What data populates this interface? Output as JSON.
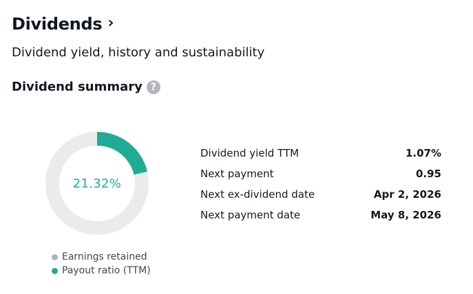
{
  "header": {
    "title": "Dividends",
    "chevron": "›",
    "subtitle": "Dividend yield, history and sustainability"
  },
  "summary": {
    "title": "Dividend summary",
    "help_icon": "question-mark-icon",
    "help_glyph": "?"
  },
  "chart_data": {
    "type": "pie",
    "variant": "donut",
    "center_label": "21.32%",
    "slices": [
      {
        "name": "Payout ratio (TTM)",
        "value": 21.32,
        "color": "#22ab94"
      },
      {
        "name": "Earnings retained",
        "value": 78.68,
        "color": "#ebebeb"
      }
    ],
    "legend": [
      {
        "label": "Earnings retained",
        "color": "#b2b5be"
      },
      {
        "label": "Payout ratio (TTM)",
        "color": "#22ab94"
      }
    ]
  },
  "stats": [
    {
      "label": "Dividend yield TTM",
      "value": "1.07%"
    },
    {
      "label": "Next payment",
      "value": "0.95"
    },
    {
      "label": "Next ex-dividend date",
      "value": "Apr 2, 2026"
    },
    {
      "label": "Next payment date",
      "value": "May 8, 2026"
    }
  ],
  "colors": {
    "accent": "#22ab94",
    "muted_dot": "#b2b5be",
    "track": "#ebebeb",
    "text": "#131722"
  }
}
